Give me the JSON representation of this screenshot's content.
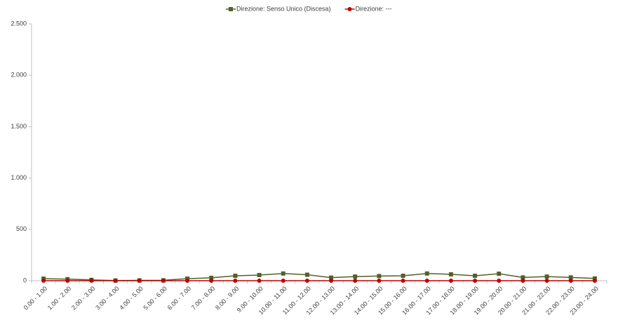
{
  "chart_data": {
    "type": "line",
    "categories": [
      "0.00 - 1.00",
      "1.00 - 2.00",
      "2.00 - 3.00",
      "3.00 - 4.00",
      "4.00 - 5.00",
      "5.00 - 6.00",
      "6.00 - 7.00",
      "7.00 - 8.00",
      "8.00 - 9.00",
      "9.00 - 10.00",
      "10.00 - 11.00",
      "11.00 - 12.00",
      "12.00 - 13.00",
      "13.00 - 14.00",
      "14.00 - 15.00",
      "15.00 - 16.00",
      "16.00 - 17.00",
      "17.00 - 18.00",
      "18.00 - 19.00",
      "19.00 - 20.00",
      "20.00 - 21.00",
      "21.00 - 22.00",
      "22.00 - 23.00",
      "23.00 - 24.00"
    ],
    "series": [
      {
        "name": "Direzione: Senso Unico (Discesa)",
        "color": "#4f6228",
        "marker": "square",
        "values": [
          20,
          15,
          8,
          2,
          3,
          4,
          20,
          28,
          48,
          55,
          70,
          58,
          30,
          40,
          45,
          48,
          70,
          62,
          48,
          68,
          32,
          40,
          32,
          22
        ]
      },
      {
        "name": "Direzione: ---",
        "color": "#c00000",
        "marker": "circle",
        "values": [
          0,
          0,
          0,
          0,
          0,
          0,
          0,
          0,
          0,
          0,
          0,
          0,
          0,
          0,
          0,
          0,
          0,
          0,
          0,
          0,
          0,
          0,
          0,
          0
        ]
      }
    ],
    "ylim": [
      0,
      2500
    ],
    "yticks": [
      0,
      500,
      {
        "value": 1000,
        "label": "1.000"
      },
      {
        "value": 1500,
        "label": "1.500"
      },
      {
        "value": 2000,
        "label": "2.000"
      },
      {
        "value": 2500,
        "label": "2.500"
      }
    ],
    "grid": false,
    "legend": "top"
  }
}
